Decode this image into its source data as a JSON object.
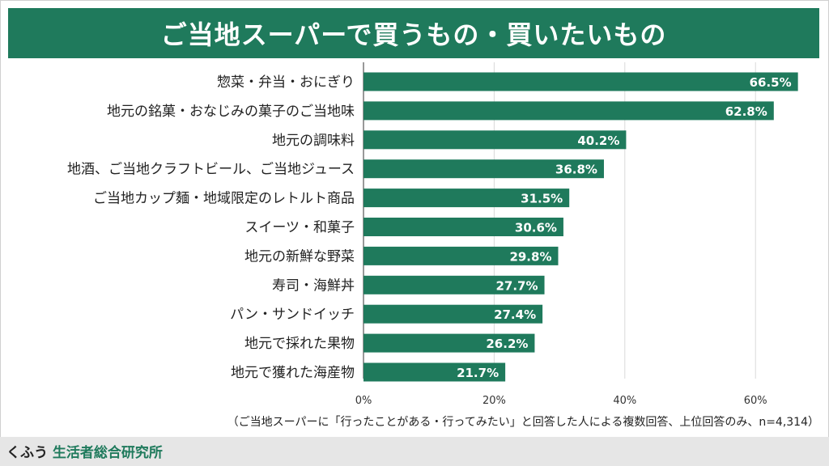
{
  "header": {
    "title": "ご当地スーパーで買うもの・買いたいもの"
  },
  "chart_data": {
    "type": "bar",
    "orientation": "horizontal",
    "categories": [
      "惣菜・弁当・おにぎり",
      "地元の銘菓・おなじみの菓子のご当地味",
      "地元の調味料",
      "地酒、ご当地クラフトビール、ご当地ジュース",
      "ご当地カップ麺・地域限定のレトルト商品",
      "スイーツ・和菓子",
      "地元の新鮮な野菜",
      "寿司・海鮮丼",
      "パン・サンドイッチ",
      "地元で採れた果物",
      "地元で獲れた海産物"
    ],
    "values": [
      66.5,
      62.8,
      40.2,
      36.8,
      31.5,
      30.6,
      29.8,
      27.7,
      27.4,
      26.2,
      21.7
    ],
    "value_labels": [
      "66.5%",
      "62.8%",
      "40.2%",
      "36.8%",
      "31.5%",
      "30.6%",
      "29.8%",
      "27.7%",
      "27.4%",
      "26.2%",
      "21.7%"
    ],
    "xlim": [
      0,
      70
    ],
    "x_ticks": [
      0,
      20,
      40,
      60
    ],
    "x_tick_labels": [
      "0%",
      "20%",
      "40%",
      "60%"
    ],
    "grid": true,
    "bar_color": "#1f7a5c",
    "title": "ご当地スーパーで買うもの・買いたいもの"
  },
  "note": "（ご当地スーパーに「行ったことがある・行ってみたい」と回答した人による複数回答、上位回答のみ、n=4,314）",
  "footer": {
    "brand_kana": "くふう",
    "brand_name": "生活者総合研究所"
  },
  "colors": {
    "accent": "#1f7a5c",
    "grid": "#d9d9d9",
    "footer_bg": "#e6e6e6"
  }
}
